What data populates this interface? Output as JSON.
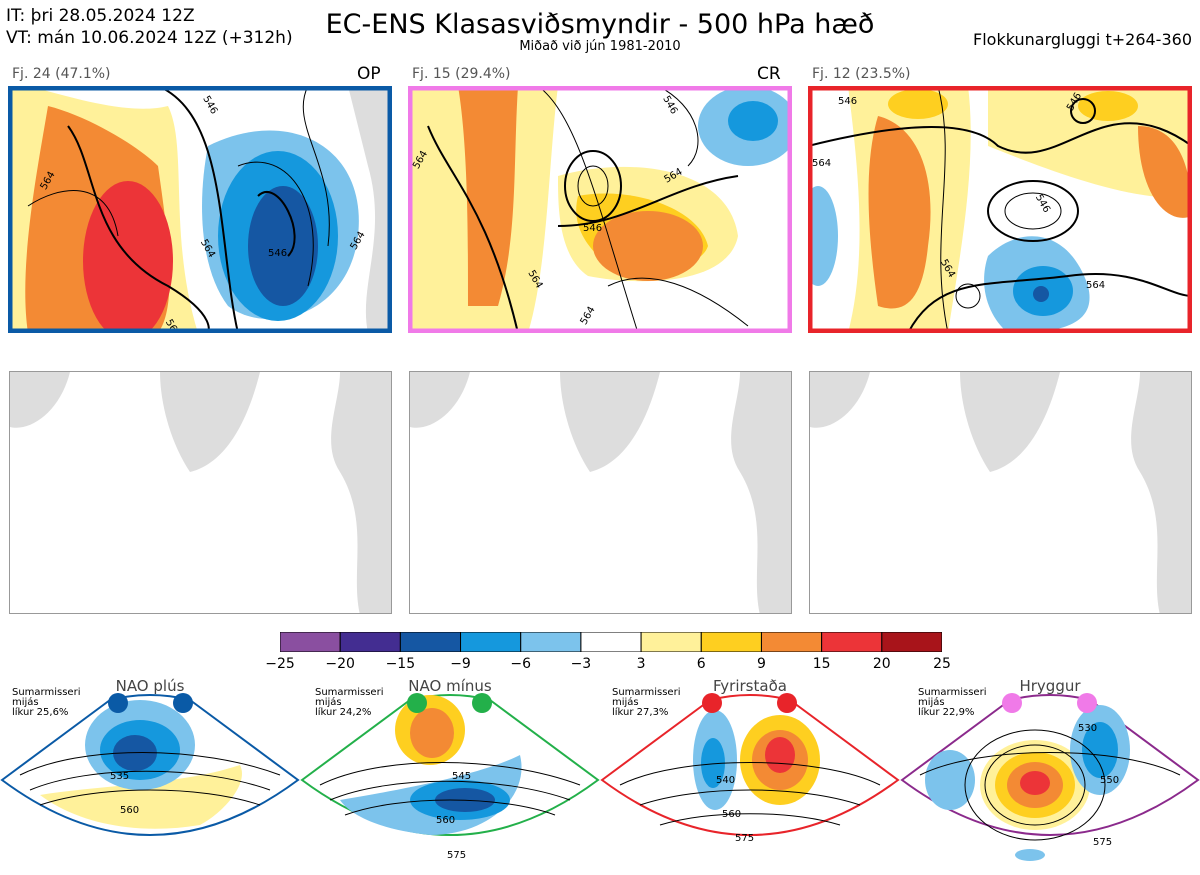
{
  "header": {
    "it_line": "IT: þri 28.05.2024 12Z",
    "vt_line": "VT: mán 10.06.2024 12Z  (+312h)",
    "title": "EC-ENS Klasasviðsmyndir - 500 hPa hæð",
    "subtitle": "Miðað við jún 1981-2010",
    "window": "Flokkunargluggi t+264-360"
  },
  "panels": [
    {
      "label": "Fj. 24 (47.1%)",
      "tag": "OP",
      "border_color": "#0a5aa6",
      "contours": [
        "546",
        "564",
        "546",
        "564",
        "564",
        "564"
      ]
    },
    {
      "label": "Fj. 15 (29.4%)",
      "tag": "CR",
      "border_color": "#f07ae8",
      "contours": [
        "546",
        "564",
        "546",
        "564",
        "564",
        "564"
      ]
    },
    {
      "label": "Fj. 12 (23.5%)",
      "tag": "",
      "border_color": "#e8242a",
      "contours": [
        "546",
        "546",
        "564",
        "564",
        "564",
        "546"
      ]
    }
  ],
  "colorbar": {
    "ticks": [
      "−25",
      "−20",
      "−15",
      "−9",
      "−6",
      "−3",
      "3",
      "6",
      "9",
      "15",
      "20",
      "25"
    ],
    "colors": [
      "#8a4fa0",
      "#432d91",
      "#1557a3",
      "#1598dd",
      "#7cc3ec",
      "#ffffff",
      "#fff19a",
      "#fecf20",
      "#f38a34",
      "#ec3438",
      "#a8141a"
    ]
  },
  "climate": [
    {
      "name": "NAO plús",
      "info": [
        "Sumarmisseri",
        "mijás",
        "líkur 25,6%"
      ],
      "dot_color": "#0a5aa6",
      "border_color": "#0a5aa6",
      "contours": [
        "535",
        "560"
      ]
    },
    {
      "name": "NAO mínus",
      "info": [
        "Sumarmisseri",
        "mijás",
        "líkur 24,2%"
      ],
      "dot_color": "#23b04a",
      "border_color": "#23b04a",
      "contours": [
        "545",
        "560",
        "575"
      ]
    },
    {
      "name": "Fyrirstaða",
      "info": [
        "Sumarmisseri",
        "mijás",
        "líkur 27,3%"
      ],
      "dot_color": "#e8242a",
      "border_color": "#e8242a",
      "contours": [
        "540",
        "560",
        "575"
      ]
    },
    {
      "name": "Hryggur",
      "info": [
        "Sumarmisseri",
        "mijás",
        "líkur 22,9%"
      ],
      "dot_color": "#f07ae8",
      "border_color": "#8b2a8c",
      "contours": [
        "530",
        "550",
        "575"
      ]
    }
  ]
}
